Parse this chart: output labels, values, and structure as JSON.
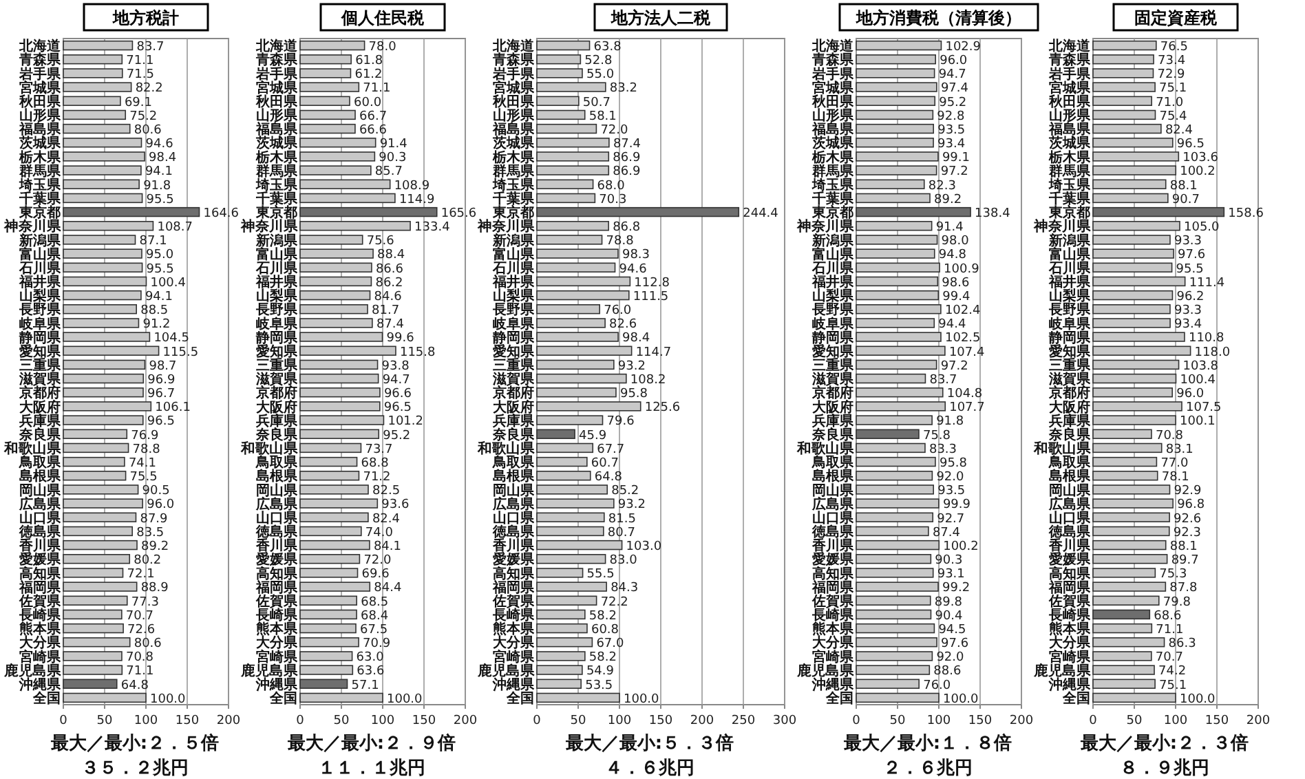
{
  "chart_data": [
    {
      "type": "bar",
      "orientation": "horizontal",
      "title": "地方税計",
      "categories": [
        "北海道",
        "青森県",
        "岩手県",
        "宮城県",
        "秋田県",
        "山形県",
        "福島県",
        "茨城県",
        "栃木県",
        "群馬県",
        "埼玉県",
        "千葉県",
        "東京都",
        "神奈川県",
        "新潟県",
        "富山県",
        "石川県",
        "福井県",
        "山梨県",
        "長野県",
        "岐阜県",
        "静岡県",
        "愛知県",
        "三重県",
        "滋賀県",
        "京都府",
        "大阪府",
        "兵庫県",
        "奈良県",
        "和歌山県",
        "鳥取県",
        "島根県",
        "岡山県",
        "広島県",
        "山口県",
        "徳島県",
        "香川県",
        "愛媛県",
        "高知県",
        "福岡県",
        "佐賀県",
        "長崎県",
        "熊本県",
        "大分県",
        "宮崎県",
        "鹿児島県",
        "沖縄県",
        "全国"
      ],
      "values": [
        83.7,
        71.1,
        71.5,
        82.2,
        69.1,
        75.2,
        80.6,
        94.6,
        98.4,
        94.1,
        91.8,
        95.5,
        164.6,
        108.7,
        87.1,
        95.0,
        95.5,
        100.4,
        94.1,
        88.5,
        91.2,
        104.5,
        115.5,
        98.7,
        96.9,
        96.7,
        106.1,
        96.5,
        76.9,
        78.8,
        74.1,
        75.5,
        90.5,
        96.0,
        87.9,
        83.5,
        89.2,
        80.2,
        72.1,
        88.9,
        77.3,
        70.7,
        72.6,
        80.6,
        70.8,
        71.1,
        64.8,
        100.0
      ],
      "value_labels": [
        "83.7",
        "71.1",
        "71.5",
        "82.2",
        "69.1",
        "75.2",
        "80.6",
        "94.6",
        "98.4",
        "94.1",
        "91.8",
        "95.5",
        "164.6",
        "108.7",
        "87.1",
        "95.0",
        "95.5",
        "100.4",
        "94.1",
        "88.5",
        "91.2",
        "104.5",
        "115.5",
        "98.7",
        "96.9",
        "96.7",
        "106.1",
        "96.5",
        "76.9",
        "78.8",
        "74.1",
        "75.5",
        "90.5",
        "96.0",
        "87.9",
        "83.5",
        "89.2",
        "80.2",
        "72.1",
        "88.9",
        "77.3",
        "70.7",
        "72.6",
        "80.6",
        "70.8",
        "71.1",
        "64.8",
        "100.0"
      ],
      "colors": [
        "#c8c8c8",
        "#c8c8c8",
        "#c8c8c8",
        "#c8c8c8",
        "#c8c8c8",
        "#c8c8c8",
        "#c8c8c8",
        "#c8c8c8",
        "#c8c8c8",
        "#c8c8c8",
        "#c8c8c8",
        "#c8c8c8",
        "#6e6e6e",
        "#c8c8c8",
        "#c8c8c8",
        "#c8c8c8",
        "#c8c8c8",
        "#c8c8c8",
        "#c8c8c8",
        "#c8c8c8",
        "#c8c8c8",
        "#c8c8c8",
        "#c8c8c8",
        "#c8c8c8",
        "#c8c8c8",
        "#c8c8c8",
        "#c8c8c8",
        "#c8c8c8",
        "#c8c8c8",
        "#c8c8c8",
        "#c8c8c8",
        "#c8c8c8",
        "#c8c8c8",
        "#c8c8c8",
        "#c8c8c8",
        "#c8c8c8",
        "#c8c8c8",
        "#c8c8c8",
        "#c8c8c8",
        "#c8c8c8",
        "#c8c8c8",
        "#c8c8c8",
        "#c8c8c8",
        "#c8c8c8",
        "#c8c8c8",
        "#c8c8c8",
        "#6e6e6e",
        "#c8c8c8"
      ],
      "xlim": [
        0,
        200
      ],
      "xticks": [
        0,
        50,
        100,
        150,
        200
      ],
      "grid": "x",
      "annotations": [
        "最大／最小:２．５倍",
        "３５．２兆円"
      ]
    },
    {
      "type": "bar",
      "orientation": "horizontal",
      "title": "個人住民税",
      "categories": [
        "北海道",
        "青森県",
        "岩手県",
        "宮城県",
        "秋田県",
        "山形県",
        "福島県",
        "茨城県",
        "栃木県",
        "群馬県",
        "埼玉県",
        "千葉県",
        "東京都",
        "神奈川県",
        "新潟県",
        "富山県",
        "石川県",
        "福井県",
        "山梨県",
        "長野県",
        "岐阜県",
        "静岡県",
        "愛知県",
        "三重県",
        "滋賀県",
        "京都府",
        "大阪府",
        "兵庫県",
        "奈良県",
        "和歌山県",
        "鳥取県",
        "島根県",
        "岡山県",
        "広島県",
        "山口県",
        "徳島県",
        "香川県",
        "愛媛県",
        "高知県",
        "福岡県",
        "佐賀県",
        "長崎県",
        "熊本県",
        "大分県",
        "宮崎県",
        "鹿児島県",
        "沖縄県",
        "全国"
      ],
      "values": [
        78.0,
        61.8,
        61.2,
        71.1,
        60.0,
        66.7,
        66.6,
        91.4,
        90.3,
        85.7,
        108.9,
        114.9,
        165.6,
        133.4,
        75.6,
        88.4,
        86.6,
        86.2,
        84.6,
        81.7,
        87.4,
        99.6,
        115.8,
        93.8,
        94.7,
        96.6,
        96.5,
        101.2,
        95.2,
        73.7,
        68.8,
        71.2,
        82.5,
        93.6,
        82.4,
        74.0,
        84.1,
        72.0,
        69.6,
        84.4,
        68.5,
        68.4,
        67.5,
        70.9,
        63.0,
        63.6,
        57.1,
        100.0
      ],
      "value_labels": [
        "78.0",
        "61.8",
        "61.2",
        "71.1",
        "60.0",
        "66.7",
        "66.6",
        "91.4",
        "90.3",
        "85.7",
        "108.9",
        "114.9",
        "165.6",
        "133.4",
        "75.6",
        "88.4",
        "86.6",
        "86.2",
        "84.6",
        "81.7",
        "87.4",
        "99.6",
        "115.8",
        "93.8",
        "94.7",
        "96.6",
        "96.5",
        "101.2",
        "95.2",
        "73.7",
        "68.8",
        "71.2",
        "82.5",
        "93.6",
        "82.4",
        "74.0",
        "84.1",
        "72.0",
        "69.6",
        "84.4",
        "68.5",
        "68.4",
        "67.5",
        "70.9",
        "63.0",
        "63.6",
        "57.1",
        "100.0"
      ],
      "colors": [
        "#c8c8c8",
        "#c8c8c8",
        "#c8c8c8",
        "#c8c8c8",
        "#c8c8c8",
        "#c8c8c8",
        "#c8c8c8",
        "#c8c8c8",
        "#c8c8c8",
        "#c8c8c8",
        "#c8c8c8",
        "#c8c8c8",
        "#6e6e6e",
        "#c8c8c8",
        "#c8c8c8",
        "#c8c8c8",
        "#c8c8c8",
        "#c8c8c8",
        "#c8c8c8",
        "#c8c8c8",
        "#c8c8c8",
        "#c8c8c8",
        "#c8c8c8",
        "#c8c8c8",
        "#c8c8c8",
        "#c8c8c8",
        "#c8c8c8",
        "#c8c8c8",
        "#c8c8c8",
        "#c8c8c8",
        "#c8c8c8",
        "#c8c8c8",
        "#c8c8c8",
        "#c8c8c8",
        "#c8c8c8",
        "#c8c8c8",
        "#c8c8c8",
        "#c8c8c8",
        "#c8c8c8",
        "#c8c8c8",
        "#c8c8c8",
        "#c8c8c8",
        "#c8c8c8",
        "#c8c8c8",
        "#c8c8c8",
        "#c8c8c8",
        "#6e6e6e",
        "#c8c8c8"
      ],
      "xlim": [
        0,
        200
      ],
      "xticks": [
        0,
        50,
        100,
        150,
        200
      ],
      "grid": "x",
      "annotations": [
        "最大／最小:２．９倍",
        "１１．１兆円"
      ]
    },
    {
      "type": "bar",
      "orientation": "horizontal",
      "title": "地方法人二税",
      "categories": [
        "北海道",
        "青森県",
        "岩手県",
        "宮城県",
        "秋田県",
        "山形県",
        "福島県",
        "茨城県",
        "栃木県",
        "群馬県",
        "埼玉県",
        "千葉県",
        "東京都",
        "神奈川県",
        "新潟県",
        "富山県",
        "石川県",
        "福井県",
        "山梨県",
        "長野県",
        "岐阜県",
        "静岡県",
        "愛知県",
        "三重県",
        "滋賀県",
        "京都府",
        "大阪府",
        "兵庫県",
        "奈良県",
        "和歌山県",
        "鳥取県",
        "島根県",
        "岡山県",
        "広島県",
        "山口県",
        "徳島県",
        "香川県",
        "愛媛県",
        "高知県",
        "福岡県",
        "佐賀県",
        "長崎県",
        "熊本県",
        "大分県",
        "宮崎県",
        "鹿児島県",
        "沖縄県",
        "全国"
      ],
      "values": [
        63.8,
        52.8,
        55.0,
        83.2,
        50.7,
        58.1,
        72.0,
        87.4,
        86.9,
        86.9,
        68.0,
        70.3,
        244.4,
        86.8,
        78.8,
        98.3,
        94.6,
        112.8,
        111.5,
        76.0,
        82.6,
        98.4,
        114.7,
        93.2,
        108.2,
        95.8,
        125.6,
        79.6,
        45.9,
        67.7,
        60.7,
        64.8,
        85.2,
        93.2,
        81.5,
        80.7,
        103.0,
        83.0,
        55.5,
        84.3,
        72.2,
        58.2,
        60.8,
        67.0,
        58.2,
        54.9,
        53.5,
        100.0
      ],
      "value_labels": [
        "63.8",
        "52.8",
        "55.0",
        "83.2",
        "50.7",
        "58.1",
        "72.0",
        "87.4",
        "86.9",
        "86.9",
        "68.0",
        "70.3",
        "244.4",
        "86.8",
        "78.8",
        "98.3",
        "94.6",
        "112.8",
        "111.5",
        "76.0",
        "82.6",
        "98.4",
        "114.7",
        "93.2",
        "108.2",
        "95.8",
        "125.6",
        "79.6",
        "45.9",
        "67.7",
        "60.7",
        "64.8",
        "85.2",
        "93.2",
        "81.5",
        "80.7",
        "103.0",
        "83.0",
        "55.5",
        "84.3",
        "72.2",
        "58.2",
        "60.8",
        "67.0",
        "58.2",
        "54.9",
        "53.5",
        "100.0"
      ],
      "colors": [
        "#c8c8c8",
        "#c8c8c8",
        "#c8c8c8",
        "#c8c8c8",
        "#c8c8c8",
        "#c8c8c8",
        "#c8c8c8",
        "#c8c8c8",
        "#c8c8c8",
        "#c8c8c8",
        "#c8c8c8",
        "#c8c8c8",
        "#6e6e6e",
        "#c8c8c8",
        "#c8c8c8",
        "#c8c8c8",
        "#c8c8c8",
        "#c8c8c8",
        "#c8c8c8",
        "#c8c8c8",
        "#c8c8c8",
        "#c8c8c8",
        "#c8c8c8",
        "#c8c8c8",
        "#c8c8c8",
        "#c8c8c8",
        "#c8c8c8",
        "#c8c8c8",
        "#6e6e6e",
        "#c8c8c8",
        "#c8c8c8",
        "#c8c8c8",
        "#c8c8c8",
        "#c8c8c8",
        "#c8c8c8",
        "#c8c8c8",
        "#c8c8c8",
        "#c8c8c8",
        "#c8c8c8",
        "#c8c8c8",
        "#c8c8c8",
        "#c8c8c8",
        "#c8c8c8",
        "#c8c8c8",
        "#c8c8c8",
        "#c8c8c8",
        "#c8c8c8",
        "#c8c8c8"
      ],
      "xlim": [
        0,
        300
      ],
      "xticks": [
        0,
        50,
        100,
        150,
        200,
        250,
        300
      ],
      "grid": "x",
      "annotations": [
        "最大／最小:５．３倍",
        "４．６兆円"
      ]
    },
    {
      "type": "bar",
      "orientation": "horizontal",
      "title": "地方消費税（清算後）",
      "categories": [
        "北海道",
        "青森県",
        "岩手県",
        "宮城県",
        "秋田県",
        "山形県",
        "福島県",
        "茨城県",
        "栃木県",
        "群馬県",
        "埼玉県",
        "千葉県",
        "東京都",
        "神奈川県",
        "新潟県",
        "富山県",
        "石川県",
        "福井県",
        "山梨県",
        "長野県",
        "岐阜県",
        "静岡県",
        "愛知県",
        "三重県",
        "滋賀県",
        "京都府",
        "大阪府",
        "兵庫県",
        "奈良県",
        "和歌山県",
        "鳥取県",
        "島根県",
        "岡山県",
        "広島県",
        "山口県",
        "徳島県",
        "香川県",
        "愛媛県",
        "高知県",
        "福岡県",
        "佐賀県",
        "長崎県",
        "熊本県",
        "大分県",
        "宮崎県",
        "鹿児島県",
        "沖縄県",
        "全国"
      ],
      "values": [
        102.9,
        96.0,
        94.7,
        97.4,
        95.2,
        92.8,
        93.5,
        93.4,
        99.1,
        97.2,
        82.3,
        89.2,
        138.4,
        91.4,
        98.0,
        94.8,
        100.9,
        98.6,
        99.4,
        102.4,
        94.4,
        102.5,
        107.4,
        97.2,
        83.7,
        104.8,
        107.7,
        91.8,
        75.8,
        83.3,
        95.8,
        92.0,
        93.5,
        99.9,
        92.7,
        87.4,
        100.2,
        90.3,
        93.1,
        99.2,
        89.8,
        90.4,
        94.5,
        97.6,
        92.0,
        88.6,
        76.0,
        100.0
      ],
      "value_labels": [
        "102.9",
        "96.0",
        "94.7",
        "97.4",
        "95.2",
        "92.8",
        "93.5",
        "93.4",
        "99.1",
        "97.2",
        "82.3",
        "89.2",
        "138.4",
        "91.4",
        "98.0",
        "94.8",
        "100.9",
        "98.6",
        "99.4",
        "102.4",
        "94.4",
        "102.5",
        "107.4",
        "97.2",
        "83.7",
        "104.8",
        "107.7",
        "91.8",
        "75.8",
        "83.3",
        "95.8",
        "92.0",
        "93.5",
        "99.9",
        "92.7",
        "87.4",
        "100.2",
        "90.3",
        "93.1",
        "99.2",
        "89.8",
        "90.4",
        "94.5",
        "97.6",
        "92.0",
        "88.6",
        "76.0",
        "100.0"
      ],
      "colors": [
        "#c8c8c8",
        "#c8c8c8",
        "#c8c8c8",
        "#c8c8c8",
        "#c8c8c8",
        "#c8c8c8",
        "#c8c8c8",
        "#c8c8c8",
        "#c8c8c8",
        "#c8c8c8",
        "#c8c8c8",
        "#c8c8c8",
        "#6e6e6e",
        "#c8c8c8",
        "#c8c8c8",
        "#c8c8c8",
        "#c8c8c8",
        "#c8c8c8",
        "#c8c8c8",
        "#c8c8c8",
        "#c8c8c8",
        "#c8c8c8",
        "#c8c8c8",
        "#c8c8c8",
        "#c8c8c8",
        "#c8c8c8",
        "#c8c8c8",
        "#c8c8c8",
        "#6e6e6e",
        "#c8c8c8",
        "#c8c8c8",
        "#c8c8c8",
        "#c8c8c8",
        "#c8c8c8",
        "#c8c8c8",
        "#c8c8c8",
        "#c8c8c8",
        "#c8c8c8",
        "#c8c8c8",
        "#c8c8c8",
        "#c8c8c8",
        "#c8c8c8",
        "#c8c8c8",
        "#c8c8c8",
        "#c8c8c8",
        "#c8c8c8",
        "#c8c8c8",
        "#c8c8c8"
      ],
      "xlim": [
        0,
        200
      ],
      "xticks": [
        0,
        50,
        100,
        150,
        200
      ],
      "grid": "x",
      "annotations": [
        "最大／最小:１．８倍",
        "２．６兆円"
      ]
    },
    {
      "type": "bar",
      "orientation": "horizontal",
      "title": "固定資産税",
      "categories": [
        "北海道",
        "青森県",
        "岩手県",
        "宮城県",
        "秋田県",
        "山形県",
        "福島県",
        "茨城県",
        "栃木県",
        "群馬県",
        "埼玉県",
        "千葉県",
        "東京都",
        "神奈川県",
        "新潟県",
        "富山県",
        "石川県",
        "福井県",
        "山梨県",
        "長野県",
        "岐阜県",
        "静岡県",
        "愛知県",
        "三重県",
        "滋賀県",
        "京都府",
        "大阪府",
        "兵庫県",
        "奈良県",
        "和歌山県",
        "鳥取県",
        "島根県",
        "岡山県",
        "広島県",
        "山口県",
        "徳島県",
        "香川県",
        "愛媛県",
        "高知県",
        "福岡県",
        "佐賀県",
        "長崎県",
        "熊本県",
        "大分県",
        "宮崎県",
        "鹿児島県",
        "沖縄県",
        "全国"
      ],
      "values": [
        76.5,
        73.4,
        72.9,
        75.1,
        71.0,
        75.4,
        82.4,
        96.5,
        103.6,
        100.2,
        88.1,
        90.7,
        158.6,
        105.0,
        93.3,
        97.6,
        95.5,
        111.4,
        96.2,
        93.3,
        93.4,
        110.8,
        118.0,
        103.8,
        100.4,
        96.0,
        107.5,
        100.1,
        70.8,
        83.1,
        77.0,
        78.1,
        92.9,
        96.8,
        92.6,
        92.3,
        88.1,
        89.7,
        75.3,
        87.8,
        79.8,
        68.6,
        71.1,
        86.3,
        70.7,
        74.2,
        75.1,
        100.0
      ],
      "value_labels": [
        "76.5",
        "73.4",
        "72.9",
        "75.1",
        "71.0",
        "75.4",
        "82.4",
        "96.5",
        "103.6",
        "100.2",
        "88.1",
        "90.7",
        "158.6",
        "105.0",
        "93.3",
        "97.6",
        "95.5",
        "111.4",
        "96.2",
        "93.3",
        "93.4",
        "110.8",
        "118.0",
        "103.8",
        "100.4",
        "96.0",
        "107.5",
        "100.1",
        "70.8",
        "83.1",
        "77.0",
        "78.1",
        "92.9",
        "96.8",
        "92.6",
        "92.3",
        "88.1",
        "89.7",
        "75.3",
        "87.8",
        "79.8",
        "68.6",
        "71.1",
        "86.3",
        "70.7",
        "74.2",
        "75.1",
        "100.0"
      ],
      "colors": [
        "#c8c8c8",
        "#c8c8c8",
        "#c8c8c8",
        "#c8c8c8",
        "#c8c8c8",
        "#c8c8c8",
        "#c8c8c8",
        "#c8c8c8",
        "#c8c8c8",
        "#c8c8c8",
        "#c8c8c8",
        "#c8c8c8",
        "#6e6e6e",
        "#c8c8c8",
        "#c8c8c8",
        "#c8c8c8",
        "#c8c8c8",
        "#c8c8c8",
        "#c8c8c8",
        "#c8c8c8",
        "#c8c8c8",
        "#c8c8c8",
        "#c8c8c8",
        "#c8c8c8",
        "#c8c8c8",
        "#c8c8c8",
        "#c8c8c8",
        "#c8c8c8",
        "#c8c8c8",
        "#c8c8c8",
        "#c8c8c8",
        "#c8c8c8",
        "#c8c8c8",
        "#c8c8c8",
        "#c8c8c8",
        "#c8c8c8",
        "#c8c8c8",
        "#c8c8c8",
        "#c8c8c8",
        "#c8c8c8",
        "#c8c8c8",
        "#6e6e6e",
        "#c8c8c8",
        "#c8c8c8",
        "#c8c8c8",
        "#c8c8c8",
        "#c8c8c8",
        "#c8c8c8"
      ],
      "xlim": [
        0,
        200
      ],
      "xticks": [
        0,
        50,
        100,
        150,
        200
      ],
      "grid": "x",
      "annotations": [
        "最大／最小:２．３倍",
        "８．９兆円"
      ]
    }
  ]
}
